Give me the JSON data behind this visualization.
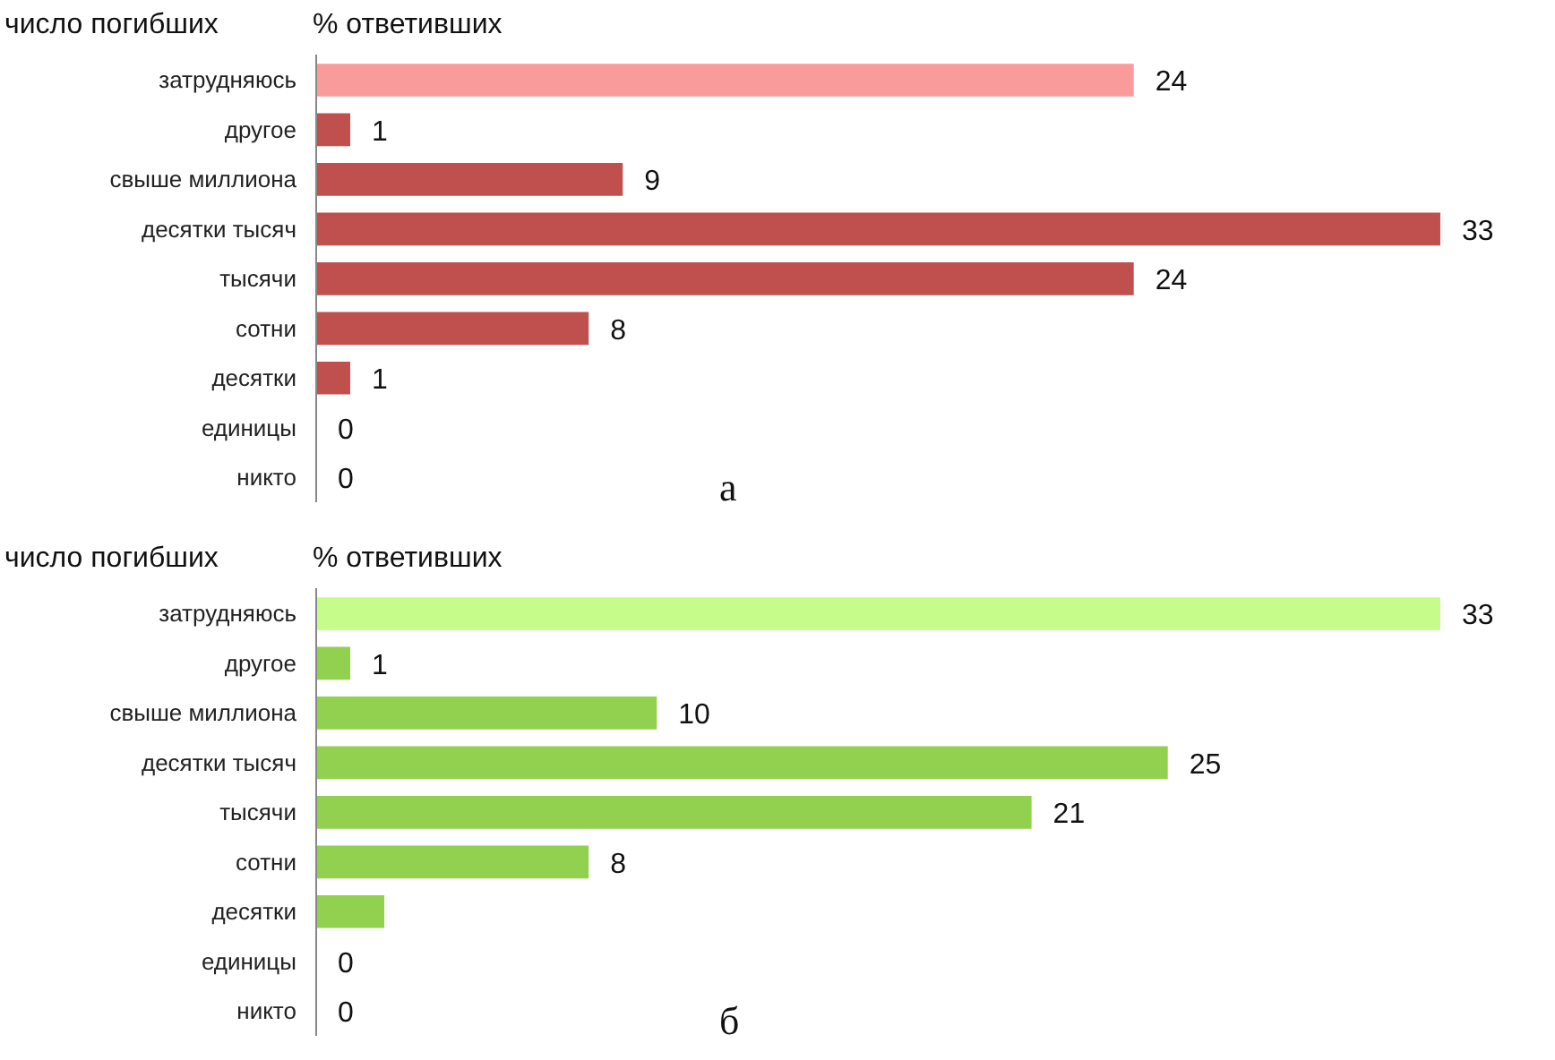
{
  "chart_data": [
    {
      "type": "bar",
      "orientation": "horizontal",
      "ylabel": "число погибших",
      "xlabel": "% ответивших",
      "categories": [
        "затрудняюсь",
        "другое",
        "свыше миллиона",
        "десятки тысяч",
        "тысячи",
        "сотни",
        "десятки",
        "единицы",
        "никто"
      ],
      "values": [
        24,
        1,
        9,
        33,
        24,
        8,
        1,
        0,
        0
      ],
      "colors": [
        "#f99b9b",
        "#c0504d",
        "#c0504d",
        "#c0504d",
        "#c0504d",
        "#c0504d",
        "#c0504d",
        "#c0504d",
        "#c0504d"
      ],
      "data_labels": true,
      "grid": false,
      "annotations": [
        "а"
      ]
    },
    {
      "type": "bar",
      "orientation": "horizontal",
      "ylabel": "число погибших",
      "xlabel": "% ответивших",
      "categories": [
        "затрудняюсь",
        "другое",
        "свыше миллиона",
        "десятки тысяч",
        "тысячи",
        "сотни",
        "десятки",
        "единицы",
        "никто"
      ],
      "values": [
        33,
        1,
        10,
        25,
        21,
        8,
        2,
        0,
        0
      ],
      "colors": [
        "#c6fd8a",
        "#92d050",
        "#92d050",
        "#92d050",
        "#92d050",
        "#92d050",
        "#92d050",
        "#92d050",
        "#92d050"
      ],
      "value_labels": [
        "33",
        "1",
        "10",
        "25",
        "21",
        "8",
        null,
        "0",
        "0"
      ],
      "grid": false,
      "annotations": [
        "б"
      ]
    }
  ]
}
